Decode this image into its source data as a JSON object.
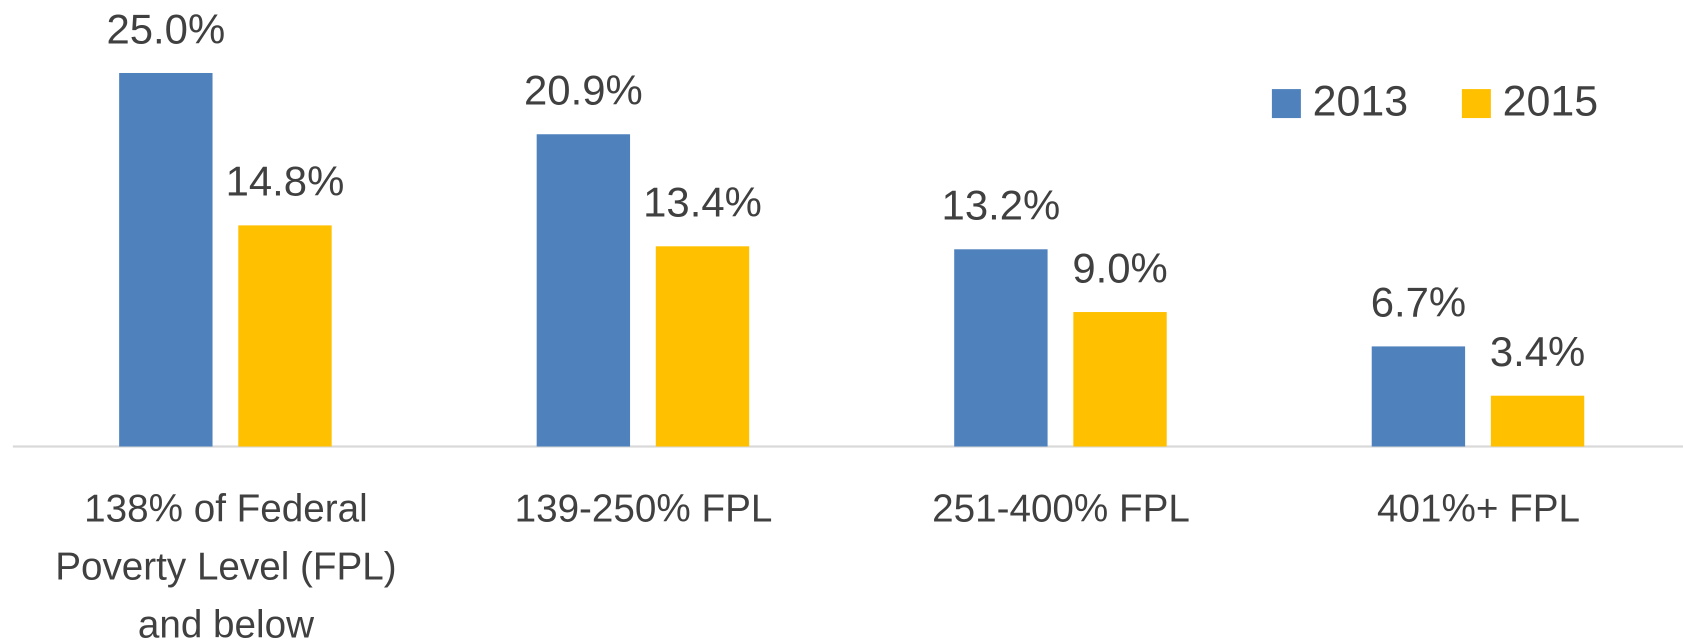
{
  "chart_data": {
    "type": "bar",
    "categories": [
      "138% of Federal Poverty Level (FPL) and below",
      "139-250% FPL",
      "251-400% FPL",
      "401%+ FPL"
    ],
    "series": [
      {
        "name": "2013",
        "color": "#4f81bd",
        "values": [
          25.0,
          20.9,
          13.2,
          6.7
        ],
        "value_labels": [
          "25.0%",
          "20.9%",
          "13.2%",
          "6.7%"
        ]
      },
      {
        "name": "2015",
        "color": "#ffc000",
        "values": [
          14.8,
          13.4,
          9.0,
          3.4
        ],
        "value_labels": [
          "14.8%",
          "13.4%",
          "9.0%",
          "3.4%"
        ]
      }
    ],
    "legend": "top-right"
  }
}
